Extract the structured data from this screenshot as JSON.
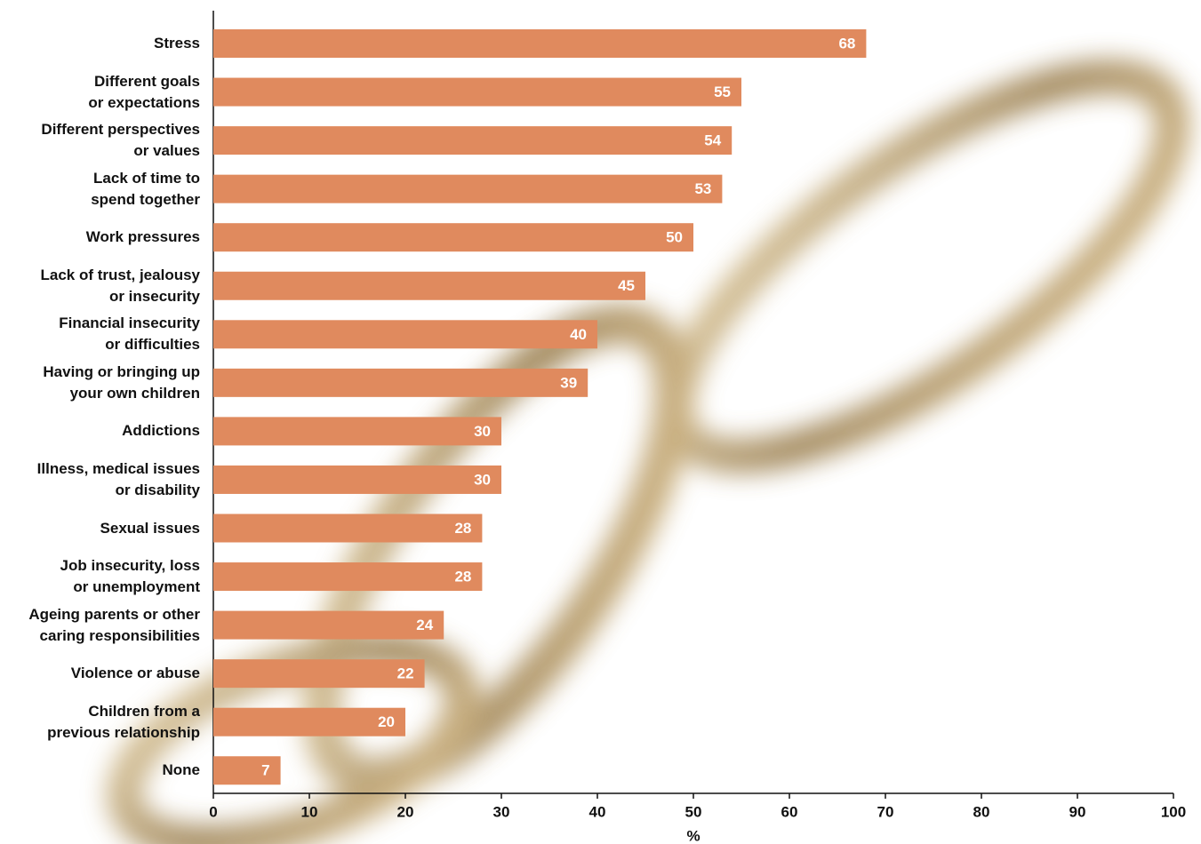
{
  "chart_data": {
    "type": "bar",
    "orientation": "horizontal",
    "categories": [
      "Stress",
      "Different goals\nor expectations",
      "Different perspectives\nor values",
      "Lack of time to\nspend together",
      "Work pressures",
      "Lack of trust, jealousy\nor insecurity",
      "Financial insecurity\nor difficulties",
      "Having or bringing up\nyour own children",
      "Addictions",
      "Illness, medical issues\nor disability",
      "Sexual issues",
      "Job insecurity, loss\nor unemployment",
      "Ageing parents or other\ncaring responsibilities",
      "Violence or abuse",
      "Children from a\nprevious relationship",
      "None"
    ],
    "values": [
      68,
      55,
      54,
      53,
      50,
      45,
      40,
      39,
      30,
      30,
      28,
      28,
      24,
      22,
      20,
      7
    ],
    "color": "#e08a5e",
    "xlabel": "%",
    "xlim": [
      0,
      100
    ],
    "xticks": [
      0,
      10,
      20,
      30,
      40,
      50,
      60,
      70,
      80,
      90,
      100
    ]
  }
}
